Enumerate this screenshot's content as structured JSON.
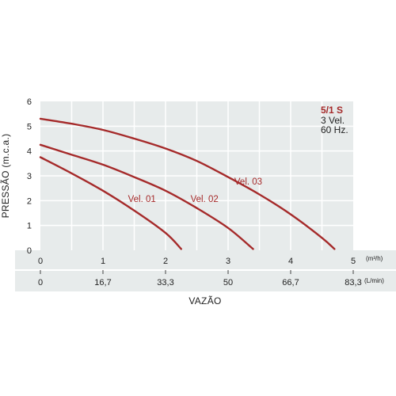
{
  "chart_data": {
    "type": "line",
    "title": "",
    "ylabel": "PRESSÃO (m.c.a.)",
    "xlabel": "VAZÃO",
    "ylim": [
      0,
      6
    ],
    "xlim": [
      0,
      5
    ],
    "y_ticks": [
      "0",
      "1",
      "2",
      "3",
      "4",
      "5",
      "6"
    ],
    "x_ticks_primary": [
      "0",
      "1",
      "2",
      "3",
      "4",
      "5"
    ],
    "x_unit_primary": "(m³/h)",
    "x_ticks_secondary": [
      "0",
      "16,7",
      "33,3",
      "50",
      "66,7",
      "83,3"
    ],
    "x_unit_secondary": "(L/min)",
    "grid": true,
    "info": {
      "model": "5/1 S",
      "speeds": "3 Vel.",
      "frequency": "60 Hz."
    },
    "colors": {
      "curve": "#a52a2a",
      "plot_bg": "#e7ebeb",
      "band_bg": "#e7ebeb",
      "grid": "#ffffff"
    },
    "series": [
      {
        "name": "Vel. 01",
        "x": [
          0,
          0.5,
          1.0,
          1.5,
          2.0,
          2.25
        ],
        "y": [
          3.75,
          3.1,
          2.4,
          1.6,
          0.7,
          0.05
        ]
      },
      {
        "name": "Vel. 02",
        "x": [
          0,
          0.5,
          1.0,
          1.5,
          2.0,
          2.5,
          3.0,
          3.4
        ],
        "y": [
          4.25,
          3.85,
          3.45,
          2.95,
          2.4,
          1.7,
          0.9,
          0.05
        ]
      },
      {
        "name": "Vel. 03",
        "x": [
          0,
          0.5,
          1.0,
          1.5,
          2.0,
          2.5,
          3.0,
          3.5,
          4.0,
          4.5,
          4.7
        ],
        "y": [
          5.3,
          5.1,
          4.85,
          4.5,
          4.1,
          3.6,
          2.95,
          2.25,
          1.45,
          0.5,
          0.05
        ]
      }
    ]
  }
}
